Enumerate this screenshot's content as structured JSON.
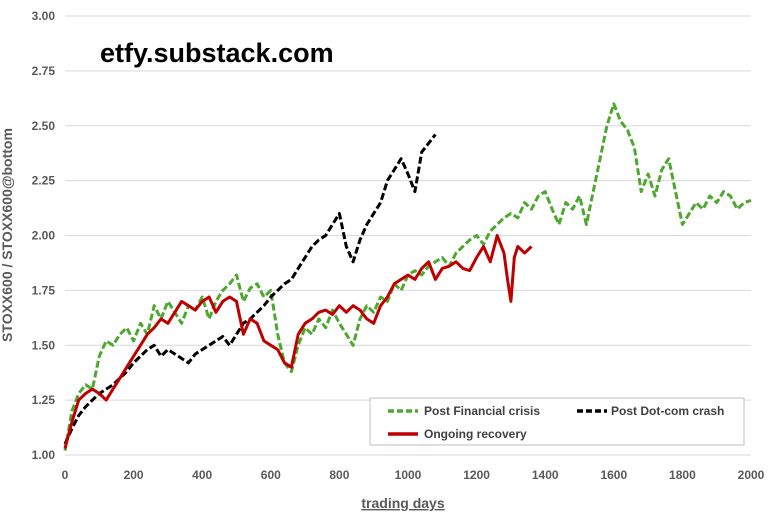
{
  "chart_data": {
    "type": "line",
    "title": "",
    "watermark": "etfy.substack.com",
    "xlabel": "trading days",
    "ylabel": "STOXX600 / STOXX600@bottom",
    "xlim": [
      0,
      2000
    ],
    "ylim": [
      1.0,
      3.0
    ],
    "xticks": [
      "0",
      "200",
      "400",
      "600",
      "800",
      "1000",
      "1200",
      "1400",
      "1600",
      "1800",
      "2000"
    ],
    "yticks": [
      "1.00",
      "1.25",
      "1.50",
      "1.75",
      "2.00",
      "2.25",
      "2.50",
      "2.75",
      "3.00"
    ],
    "grid": "horizontal",
    "legend_position": "bottom-right",
    "series": [
      {
        "name": "Post Financial crisis",
        "color": "#4ea72e",
        "dash": "dashed",
        "x": [
          0,
          20,
          40,
          60,
          80,
          100,
          120,
          140,
          160,
          180,
          200,
          220,
          240,
          260,
          280,
          300,
          320,
          340,
          360,
          380,
          400,
          420,
          440,
          460,
          480,
          500,
          520,
          540,
          560,
          580,
          600,
          620,
          640,
          660,
          680,
          700,
          720,
          740,
          760,
          780,
          800,
          820,
          840,
          860,
          880,
          900,
          920,
          940,
          960,
          980,
          1000,
          1020,
          1040,
          1060,
          1080,
          1100,
          1120,
          1140,
          1160,
          1180,
          1200,
          1220,
          1240,
          1260,
          1280,
          1300,
          1320,
          1340,
          1360,
          1380,
          1400,
          1420,
          1440,
          1460,
          1480,
          1500,
          1520,
          1540,
          1560,
          1580,
          1600,
          1620,
          1640,
          1660,
          1680,
          1700,
          1720,
          1740,
          1760,
          1780,
          1800,
          1820,
          1840,
          1860,
          1880,
          1900,
          1920,
          1940,
          1960,
          1980,
          2000
        ],
        "values": [
          1.02,
          1.2,
          1.28,
          1.32,
          1.3,
          1.45,
          1.52,
          1.5,
          1.55,
          1.58,
          1.52,
          1.6,
          1.55,
          1.68,
          1.62,
          1.7,
          1.65,
          1.6,
          1.68,
          1.66,
          1.72,
          1.62,
          1.7,
          1.75,
          1.78,
          1.82,
          1.7,
          1.76,
          1.78,
          1.72,
          1.75,
          1.55,
          1.42,
          1.38,
          1.5,
          1.58,
          1.55,
          1.62,
          1.58,
          1.66,
          1.6,
          1.55,
          1.5,
          1.62,
          1.68,
          1.65,
          1.72,
          1.7,
          1.78,
          1.75,
          1.82,
          1.84,
          1.82,
          1.86,
          1.88,
          1.9,
          1.86,
          1.92,
          1.95,
          1.98,
          2.0,
          1.96,
          2.02,
          2.05,
          2.08,
          2.1,
          2.08,
          2.15,
          2.12,
          2.18,
          2.2,
          2.12,
          2.05,
          2.15,
          2.12,
          2.18,
          2.05,
          2.2,
          2.35,
          2.5,
          2.6,
          2.52,
          2.48,
          2.4,
          2.2,
          2.28,
          2.18,
          2.3,
          2.35,
          2.2,
          2.05,
          2.1,
          2.15,
          2.12,
          2.18,
          2.15,
          2.2,
          2.18,
          2.12,
          2.15,
          2.16
        ]
      },
      {
        "name": "Post Dot-com crash",
        "color": "#000000",
        "dash": "dashed",
        "x": [
          0,
          20,
          40,
          60,
          80,
          100,
          120,
          140,
          160,
          180,
          200,
          220,
          240,
          260,
          280,
          300,
          320,
          340,
          360,
          380,
          400,
          420,
          440,
          460,
          480,
          500,
          520,
          540,
          560,
          580,
          600,
          620,
          640,
          660,
          680,
          700,
          720,
          740,
          760,
          780,
          800,
          820,
          840,
          860,
          880,
          900,
          920,
          940,
          960,
          980,
          1000,
          1020,
          1040,
          1060,
          1080
        ],
        "values": [
          1.05,
          1.12,
          1.18,
          1.22,
          1.25,
          1.28,
          1.3,
          1.32,
          1.35,
          1.38,
          1.42,
          1.45,
          1.48,
          1.5,
          1.45,
          1.48,
          1.46,
          1.44,
          1.42,
          1.46,
          1.48,
          1.5,
          1.52,
          1.54,
          1.5,
          1.55,
          1.6,
          1.62,
          1.65,
          1.68,
          1.72,
          1.75,
          1.78,
          1.8,
          1.85,
          1.9,
          1.95,
          1.98,
          2.0,
          2.05,
          2.1,
          1.95,
          1.88,
          1.98,
          2.05,
          2.1,
          2.15,
          2.25,
          2.3,
          2.35,
          2.28,
          2.2,
          2.38,
          2.42,
          2.46
        ]
      },
      {
        "name": "Ongoing recovery",
        "color": "#c00000",
        "dash": "solid",
        "x": [
          0,
          20,
          40,
          60,
          80,
          100,
          120,
          140,
          160,
          180,
          200,
          220,
          240,
          260,
          280,
          300,
          320,
          340,
          360,
          380,
          400,
          420,
          440,
          460,
          480,
          500,
          520,
          540,
          560,
          580,
          600,
          620,
          640,
          660,
          680,
          700,
          720,
          740,
          760,
          780,
          800,
          820,
          840,
          860,
          880,
          900,
          920,
          940,
          960,
          980,
          1000,
          1020,
          1040,
          1060,
          1080,
          1100,
          1120,
          1140,
          1160,
          1180,
          1200,
          1220,
          1240,
          1260,
          1280,
          1290,
          1300,
          1310,
          1320,
          1340,
          1360
        ],
        "values": [
          1.03,
          1.15,
          1.25,
          1.28,
          1.3,
          1.28,
          1.25,
          1.3,
          1.35,
          1.4,
          1.45,
          1.5,
          1.55,
          1.58,
          1.62,
          1.6,
          1.65,
          1.7,
          1.68,
          1.66,
          1.7,
          1.72,
          1.65,
          1.7,
          1.72,
          1.7,
          1.55,
          1.62,
          1.6,
          1.52,
          1.5,
          1.48,
          1.42,
          1.4,
          1.55,
          1.6,
          1.62,
          1.65,
          1.66,
          1.64,
          1.68,
          1.65,
          1.68,
          1.66,
          1.62,
          1.6,
          1.68,
          1.72,
          1.78,
          1.8,
          1.82,
          1.8,
          1.85,
          1.88,
          1.8,
          1.85,
          1.86,
          1.88,
          1.85,
          1.84,
          1.9,
          1.95,
          1.88,
          2.0,
          1.92,
          1.8,
          1.7,
          1.9,
          1.95,
          1.92,
          1.95
        ]
      }
    ]
  }
}
